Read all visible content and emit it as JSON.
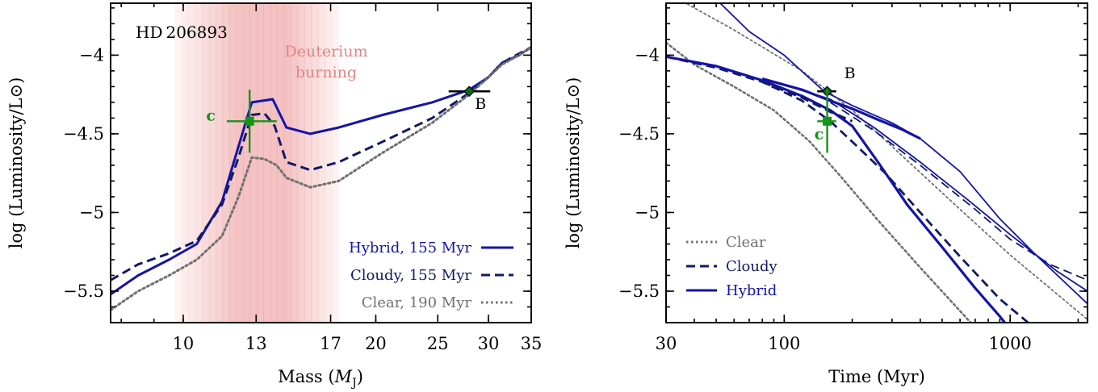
{
  "colors": {
    "hybrid": "#1414a8",
    "cloudy": "#111a66",
    "clear": "#707070",
    "companion": "#179317",
    "deuterium_band": "#e98b8b",
    "deuterium_text": "#e08585"
  },
  "chart_data": [
    {
      "type": "line",
      "panel": "left",
      "title": "",
      "xlabel": "Mass",
      "xlabel_unit_symbol": "M",
      "xlabel_unit_subscript": "J",
      "ylabel": "log (Luminosity/L⊙)",
      "x_scale": "log",
      "xlim": [
        7.7,
        35
      ],
      "ylim": [
        -5.7,
        -3.67
      ],
      "xticks": [
        10,
        13,
        17,
        20,
        25,
        30,
        35
      ],
      "yticks": [
        -4,
        -4.5,
        -5,
        -5.5
      ],
      "ytick_labels": [
        "−4",
        "−4.5",
        "−5",
        "−5.5"
      ],
      "grid": false,
      "legend_position": "bottom-right",
      "annotations": {
        "object_name": "HD 206893",
        "deuterium_label_line1": "Deuterium",
        "deuterium_label_line2": "burning",
        "planet_label": "c",
        "companion_label": "B"
      },
      "deuterium_band": {
        "x_from": 9.7,
        "x_to": 17.5,
        "peak_from": 12.2,
        "peak_to": 14.6
      },
      "series": [
        {
          "name": "Hybrid, 155 Myr",
          "style": "solid",
          "color_key": "hybrid",
          "x": [
            7.7,
            8.5,
            9.5,
            10.5,
            11.5,
            12.2,
            12.8,
            13.8,
            14.5,
            15.8,
            17.5,
            20.5,
            24.5,
            28.0,
            30.0,
            31.5,
            33.5,
            35.0
          ],
          "y": [
            -5.52,
            -5.4,
            -5.3,
            -5.2,
            -4.93,
            -4.58,
            -4.3,
            -4.28,
            -4.46,
            -4.5,
            -4.46,
            -4.38,
            -4.3,
            -4.22,
            -4.14,
            -4.05,
            -4.0,
            -3.95
          ]
        },
        {
          "name": "Cloudy, 155 Myr",
          "style": "dashed",
          "color_key": "cloudy",
          "x": [
            7.7,
            8.5,
            9.5,
            10.5,
            11.5,
            12.2,
            12.8,
            13.4,
            13.9,
            14.5,
            15.8,
            17.5,
            20.5,
            24.5,
            28.0,
            30.0,
            31.5,
            33.5,
            35.0
          ],
          "y": [
            -5.43,
            -5.33,
            -5.26,
            -5.18,
            -4.95,
            -4.65,
            -4.38,
            -4.37,
            -4.45,
            -4.68,
            -4.73,
            -4.68,
            -4.55,
            -4.4,
            -4.24,
            -4.14,
            -4.05,
            -3.99,
            -3.95
          ]
        },
        {
          "name": "Clear, 190 Myr",
          "style": "dotted",
          "color_key": "clear",
          "x": [
            7.7,
            8.5,
            9.5,
            10.5,
            11.5,
            12.2,
            12.8,
            13.4,
            14.0,
            14.5,
            15.8,
            17.5,
            20.5,
            24.5,
            28.0,
            30.0,
            31.5,
            33.5,
            35.0
          ],
          "y": [
            -5.62,
            -5.5,
            -5.4,
            -5.3,
            -5.15,
            -4.9,
            -4.65,
            -4.66,
            -4.7,
            -4.78,
            -4.84,
            -4.8,
            -4.62,
            -4.43,
            -4.25,
            -4.14,
            -4.06,
            -4.0,
            -3.95
          ]
        }
      ],
      "points": [
        {
          "name": "B",
          "x": 28.0,
          "y": -4.23,
          "xerr_low": 2.0,
          "xerr_high": 2.2,
          "yerr": 0.02,
          "marker": "diamond",
          "color_key": "cloudy"
        },
        {
          "name": "c",
          "x": 12.7,
          "y": -4.42,
          "xerr_low": 1.0,
          "xerr_high": 1.3,
          "yerr": 0.2,
          "marker": "square",
          "color_key": "companion"
        }
      ]
    },
    {
      "type": "line",
      "panel": "right",
      "title": "",
      "xlabel": "Time (Myr)",
      "ylabel": "log (Luminosity/L⊙)",
      "x_scale": "log",
      "xlim": [
        30,
        2200
      ],
      "ylim": [
        -5.7,
        -3.67
      ],
      "xticks": [
        30,
        100,
        1000
      ],
      "yticks": [
        -4,
        -4.5,
        -5,
        -5.5
      ],
      "ytick_labels": [
        "−4",
        "−4.5",
        "−5",
        "−5.5"
      ],
      "grid": false,
      "legend_position": "bottom-left",
      "annotations": {
        "planet_label": "c",
        "companion_label": "B"
      },
      "legend": [
        {
          "name": "Clear",
          "style": "dotted",
          "color_key": "clear"
        },
        {
          "name": "Cloudy",
          "style": "dashed",
          "color_key": "cloudy"
        },
        {
          "name": "Hybrid",
          "style": "solid",
          "color_key": "hybrid"
        }
      ],
      "series": [
        {
          "name": "",
          "style": "dotted",
          "color_key": "clear",
          "width": 1.8,
          "x": [
            30,
            60,
            120,
            200,
            300,
            600,
            1000,
            2200
          ],
          "y": [
            -3.6,
            -3.84,
            -4.1,
            -4.35,
            -4.58,
            -4.98,
            -5.27,
            -5.68
          ]
        },
        {
          "name": "",
          "style": "dotted",
          "color_key": "clear",
          "width": 2.6,
          "x": [
            30,
            40,
            60,
            90,
            130,
            180,
            260,
            400,
            650,
            900
          ],
          "y": [
            -3.92,
            -4.06,
            -4.2,
            -4.35,
            -4.55,
            -4.78,
            -5.05,
            -5.35,
            -5.68,
            -5.9
          ]
        },
        {
          "name": "",
          "style": "dashed",
          "color_key": "cloudy",
          "width": 1.8,
          "x": [
            160,
            250,
            400,
            700,
            1000,
            1500,
            2200
          ],
          "y": [
            -4.3,
            -4.48,
            -4.7,
            -4.98,
            -5.17,
            -5.33,
            -5.43
          ]
        },
        {
          "name": "",
          "style": "dashed",
          "color_key": "cloudy",
          "width": 2.8,
          "x": [
            30,
            50,
            80,
            120,
            160,
            200,
            280,
            400,
            600,
            900,
            1400
          ],
          "y": [
            -4.01,
            -4.08,
            -4.17,
            -4.29,
            -4.42,
            -4.55,
            -4.75,
            -5.0,
            -5.28,
            -5.55,
            -5.78
          ]
        },
        {
          "name": "",
          "style": "solid",
          "color_key": "hybrid",
          "width": 1.8,
          "x": [
            48,
            70,
            100,
            150,
            200,
            300,
            400,
            600,
            900,
            1300,
            2200
          ],
          "y": [
            -3.62,
            -3.85,
            -4.0,
            -4.23,
            -4.32,
            -4.43,
            -4.53,
            -4.74,
            -5.04,
            -5.27,
            -5.58
          ]
        },
        {
          "name": "",
          "style": "solid",
          "color_key": "hybrid",
          "width": 1.8,
          "x": [
            100,
            160,
            250,
            400,
            650,
            1000,
            1600,
            2200
          ],
          "y": [
            -4.19,
            -4.28,
            -4.46,
            -4.68,
            -4.92,
            -5.14,
            -5.37,
            -5.5
          ]
        },
        {
          "name": "",
          "style": "solid",
          "color_key": "hybrid",
          "width": 3.2,
          "x": [
            30,
            50,
            80,
            120,
            160,
            200,
            260,
            350,
            500,
            700,
            900,
            1100
          ],
          "y": [
            -4.01,
            -4.07,
            -4.16,
            -4.26,
            -4.35,
            -4.45,
            -4.68,
            -4.95,
            -5.22,
            -5.48,
            -5.66,
            -5.82
          ]
        },
        {
          "name": "",
          "style": "solid",
          "color_key": "hybrid",
          "width": 3.2,
          "x": [
            80,
            120,
            160,
            200,
            260,
            330,
            400
          ],
          "y": [
            -4.15,
            -4.22,
            -4.29,
            -4.34,
            -4.41,
            -4.47,
            -4.53
          ]
        },
        {
          "name": "",
          "style": "dashed",
          "color_key": "cloudy",
          "width": 3.0,
          "x": [
            80,
            120,
            160,
            200
          ],
          "y": [
            -4.17,
            -4.27,
            -4.36,
            -4.42
          ]
        }
      ],
      "points": [
        {
          "name": "B",
          "x": 155,
          "y": -4.23,
          "xerr_low": 15,
          "xerr_high": 15,
          "yerr": 0.02,
          "marker": "diamond",
          "color_key": "cloudy"
        },
        {
          "name": "c",
          "x": 155,
          "y": -4.42,
          "xerr_low": 15,
          "xerr_high": 15,
          "yerr": 0.2,
          "marker": "square",
          "color_key": "companion"
        }
      ]
    }
  ]
}
